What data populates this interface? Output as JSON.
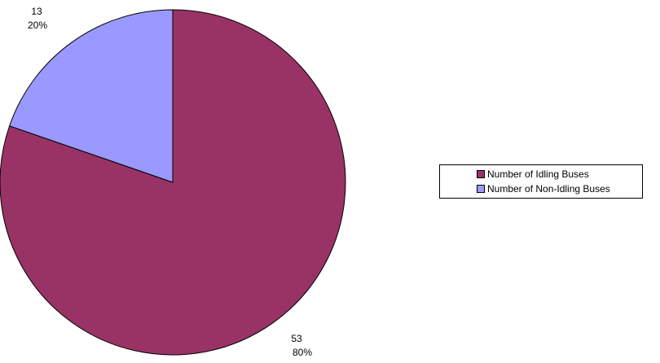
{
  "chart_data": {
    "type": "pie",
    "title": "",
    "slices": [
      {
        "label": "Number of Idling Buses",
        "value": 53,
        "percent": "80%",
        "color": "#993366"
      },
      {
        "label": "Number of Non-Idling Buses",
        "value": 13,
        "percent": "20%",
        "color": "#9999FF"
      }
    ],
    "legend": {
      "position": "right"
    }
  }
}
